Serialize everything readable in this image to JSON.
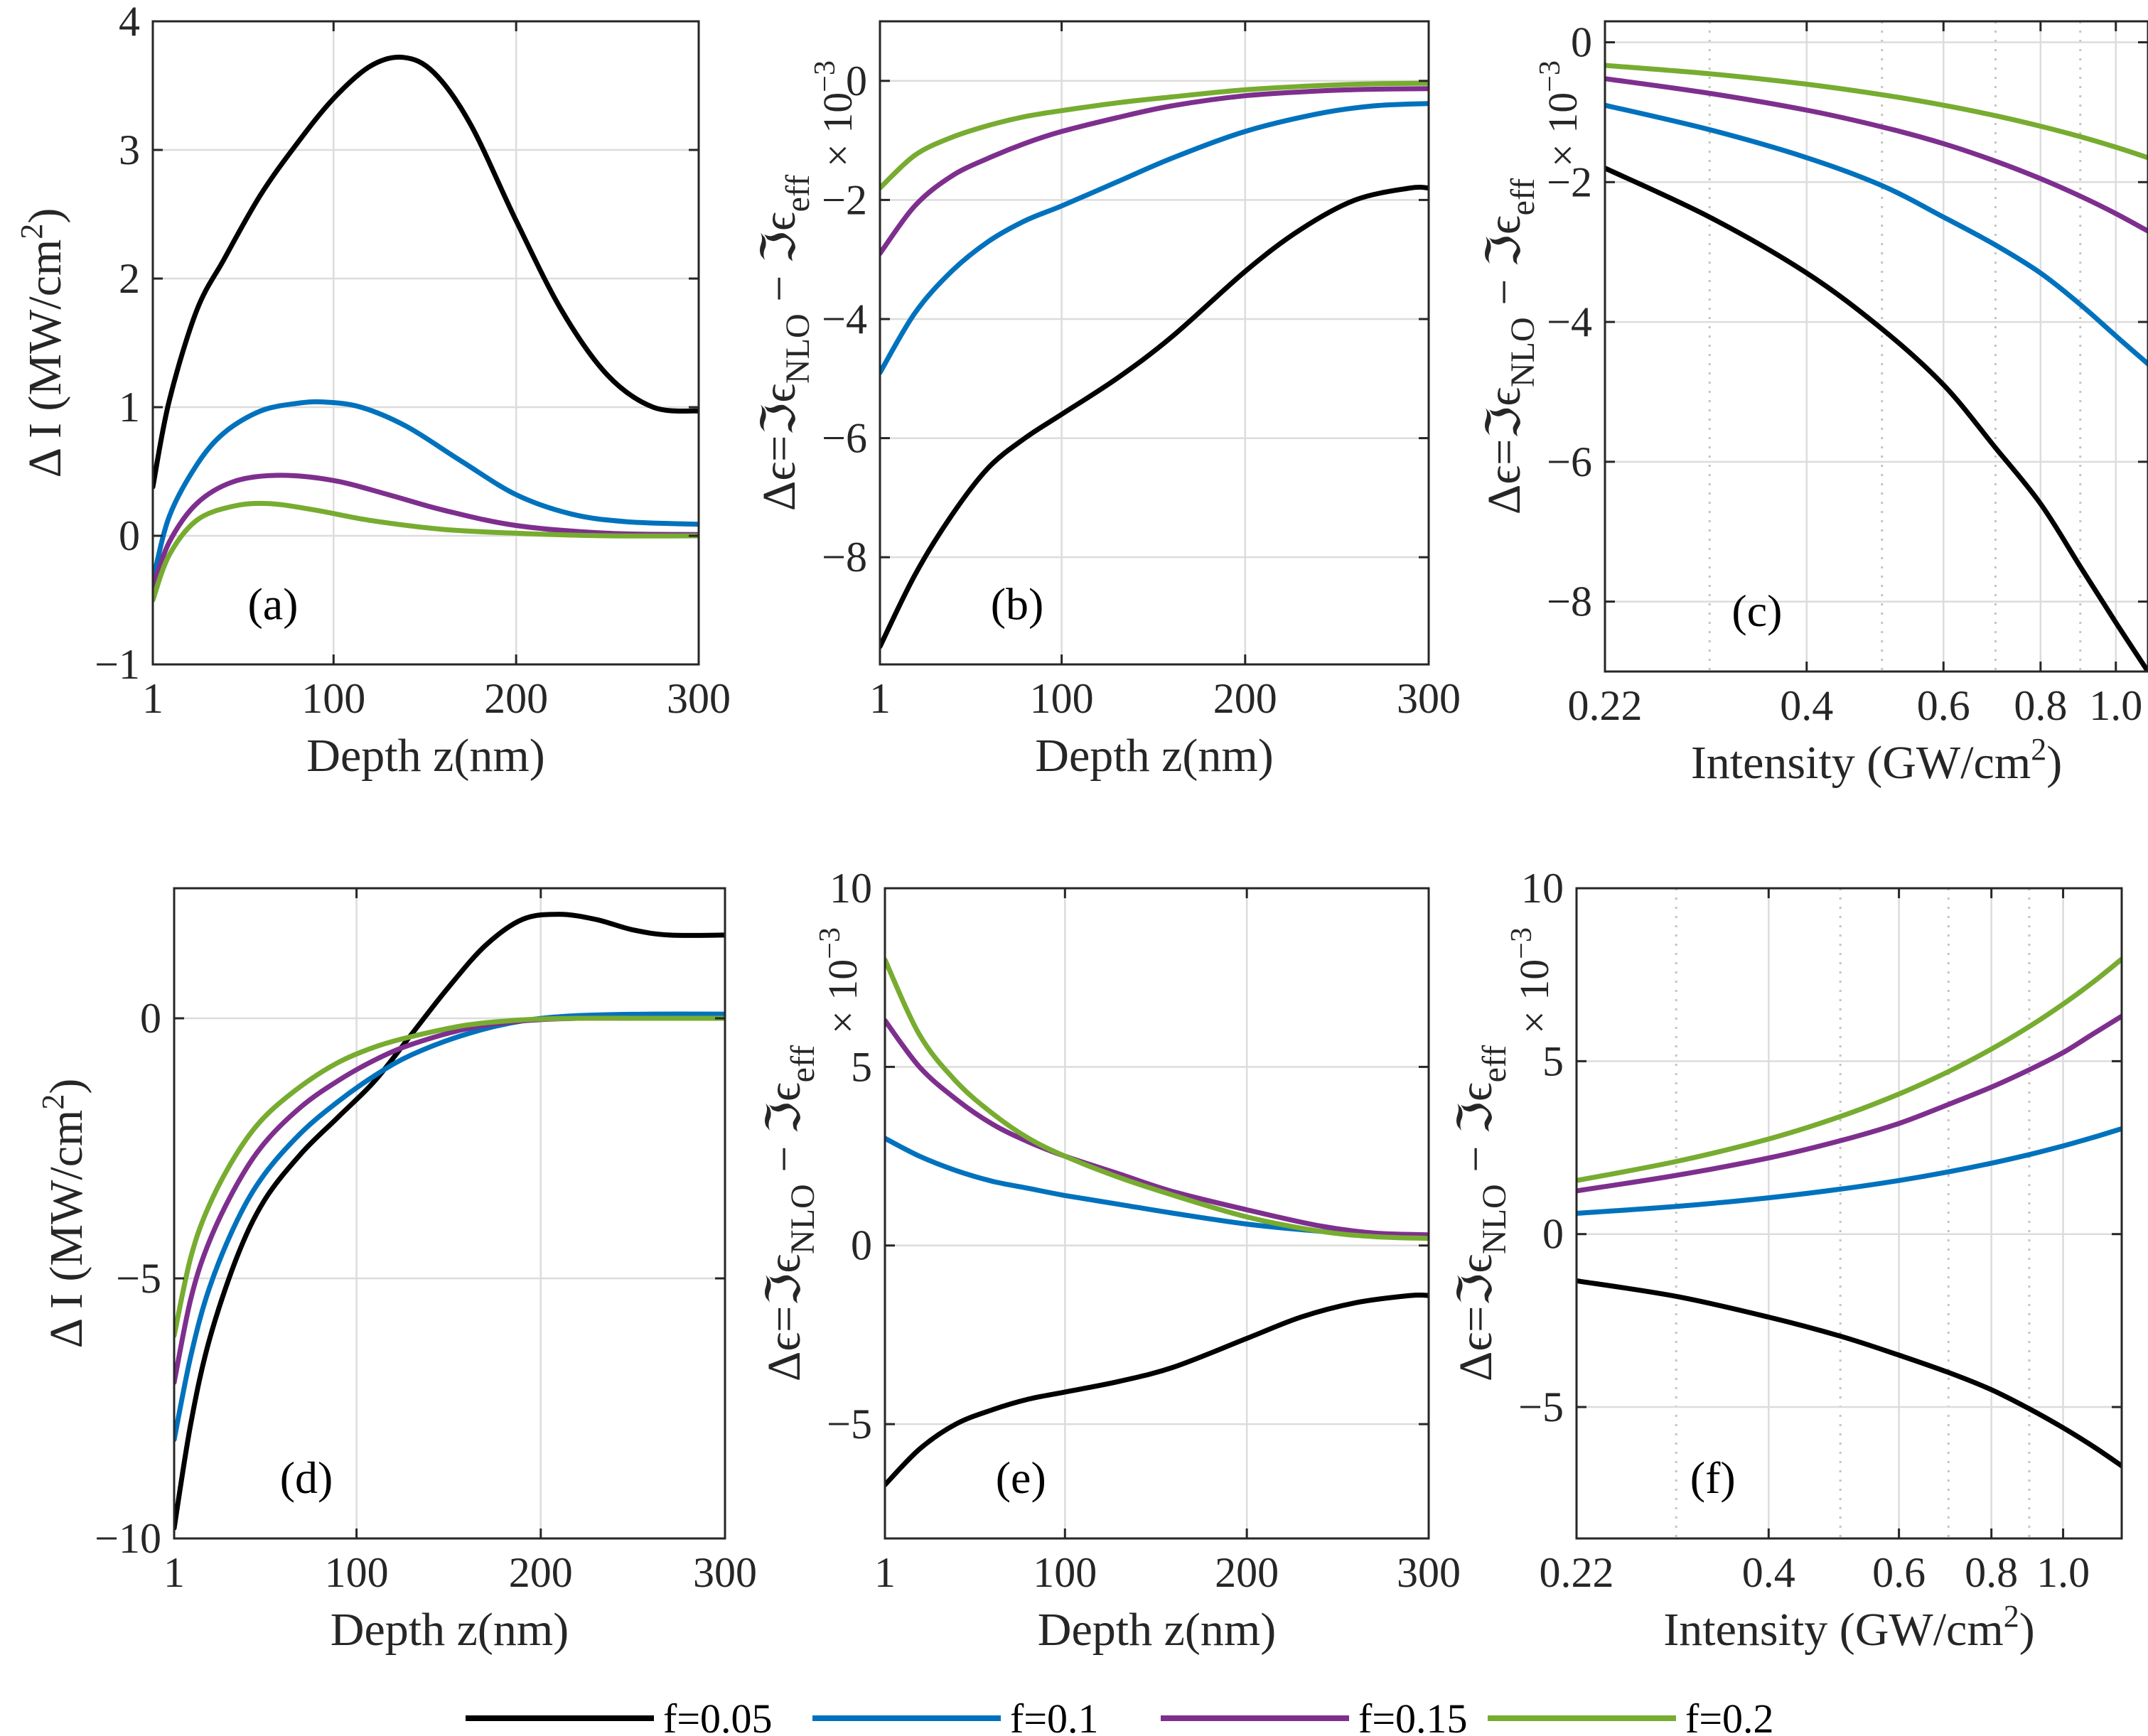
{
  "legend": [
    "f=0.05",
    "f=0.1",
    "f=0.15",
    "f=0.2"
  ],
  "colors": {
    "f=0.05": "#000000",
    "f=0.1": "#0072BD",
    "f=0.15": "#7E2F8E",
    "f=0.2": "#77AC30"
  },
  "chart_data": [
    {
      "id": "a",
      "type": "line",
      "panel_label": "(a)",
      "xlabel": "Depth z(nm)",
      "ylabel": "Δ I (MW/cm²)",
      "ylabel_parts": [
        "Δ I (MW/cm",
        "2",
        ")"
      ],
      "xscale": "linear",
      "xlim": [
        1,
        300
      ],
      "ylim": [
        -1,
        4
      ],
      "xticks": [
        1,
        100,
        200,
        300
      ],
      "xtick_labels": [
        "1",
        "100",
        "200",
        "300"
      ],
      "yticks": [
        -1,
        0,
        1,
        2,
        3,
        4
      ],
      "ytick_labels": [
        "−1",
        "0",
        "1",
        "2",
        "3",
        "4"
      ],
      "grid": "solid",
      "label_position": "bottom-left",
      "series": [
        {
          "name": "f=0.05",
          "x": [
            1,
            10,
            25,
            40,
            60,
            80,
            100,
            120,
            138,
            155,
            175,
            200,
            225,
            250,
            275,
            300
          ],
          "y": [
            0.38,
            1.05,
            1.75,
            2.15,
            2.65,
            3.05,
            3.4,
            3.65,
            3.72,
            3.6,
            3.2,
            2.45,
            1.75,
            1.25,
            1.0,
            0.97
          ]
        },
        {
          "name": "f=0.1",
          "x": [
            1,
            10,
            25,
            40,
            60,
            80,
            95,
            115,
            140,
            170,
            200,
            230,
            260,
            300
          ],
          "y": [
            -0.35,
            0.15,
            0.55,
            0.8,
            0.97,
            1.03,
            1.04,
            1.0,
            0.85,
            0.58,
            0.32,
            0.17,
            0.11,
            0.09
          ]
        },
        {
          "name": "f=0.15",
          "x": [
            1,
            10,
            25,
            45,
            70,
            100,
            130,
            160,
            200,
            250,
            300
          ],
          "y": [
            -0.4,
            -0.05,
            0.25,
            0.42,
            0.47,
            0.43,
            0.32,
            0.2,
            0.08,
            0.02,
            0.01
          ]
        },
        {
          "name": "f=0.2",
          "x": [
            1,
            10,
            25,
            45,
            65,
            90,
            120,
            160,
            200,
            250,
            300
          ],
          "y": [
            -0.5,
            -0.15,
            0.12,
            0.23,
            0.25,
            0.2,
            0.12,
            0.05,
            0.02,
            0.0,
            0.0
          ]
        }
      ]
    },
    {
      "id": "b",
      "type": "line",
      "panel_label": "(b)",
      "xlabel": "Depth z(nm)",
      "ylabel": "Δϵ=ℑϵNLO − ℑϵeff",
      "ylabel_parts": [
        "Δϵ=ℑϵ",
        "NLO",
        " − ℑϵ",
        "eff"
      ],
      "multiplier": "× 10⁻³",
      "multiplier_parts": [
        "× 10",
        "−3"
      ],
      "xscale": "linear",
      "xlim": [
        1,
        300
      ],
      "ylim": [
        -9.8,
        1
      ],
      "xticks": [
        1,
        100,
        200,
        300
      ],
      "xtick_labels": [
        "1",
        "100",
        "200",
        "300"
      ],
      "yticks": [
        0,
        -2,
        -4,
        -6,
        -8
      ],
      "ytick_labels": [
        "0",
        "−2",
        "−4",
        "−6",
        "−8"
      ],
      "grid": "solid",
      "label_position": "bottom-center",
      "series": [
        {
          "name": "f=0.05",
          "x": [
            1,
            20,
            40,
            60,
            80,
            100,
            130,
            160,
            200,
            230,
            260,
            290,
            300
          ],
          "y": [
            -9.5,
            -8.3,
            -7.3,
            -6.5,
            -6.0,
            -5.6,
            -5.0,
            -4.3,
            -3.2,
            -2.5,
            -2.0,
            -1.8,
            -1.8
          ]
        },
        {
          "name": "f=0.1",
          "x": [
            1,
            20,
            40,
            60,
            80,
            100,
            130,
            160,
            200,
            240,
            270,
            300
          ],
          "y": [
            -4.9,
            -3.9,
            -3.2,
            -2.7,
            -2.35,
            -2.1,
            -1.7,
            -1.3,
            -0.85,
            -0.55,
            -0.42,
            -0.38
          ]
        },
        {
          "name": "f=0.15",
          "x": [
            1,
            20,
            40,
            60,
            80,
            100,
            130,
            160,
            200,
            240,
            270,
            300
          ],
          "y": [
            -2.9,
            -2.1,
            -1.6,
            -1.3,
            -1.05,
            -0.85,
            -0.62,
            -0.42,
            -0.25,
            -0.17,
            -0.14,
            -0.13
          ]
        },
        {
          "name": "f=0.2",
          "x": [
            1,
            20,
            40,
            60,
            80,
            100,
            130,
            160,
            200,
            240,
            270,
            300
          ],
          "y": [
            -1.8,
            -1.25,
            -0.95,
            -0.75,
            -0.6,
            -0.5,
            -0.37,
            -0.27,
            -0.15,
            -0.08,
            -0.05,
            -0.04
          ]
        }
      ]
    },
    {
      "id": "c",
      "type": "line",
      "panel_label": "(c)",
      "xlabel": "Intensity (GW/cm²)",
      "xlabel_parts": [
        "Intensity (GW/cm",
        "2",
        ")"
      ],
      "ylabel": "Δϵ=ℑϵNLO − ℑϵeff",
      "ylabel_parts": [
        "Δϵ=ℑϵ",
        "NLO",
        " − ℑϵ",
        "eff"
      ],
      "multiplier": "× 10⁻³",
      "multiplier_parts": [
        "× 10",
        "−3"
      ],
      "xscale": "log",
      "xlim": [
        0.22,
        1.1
      ],
      "ylim": [
        -9,
        0.3
      ],
      "xticks": [
        0.22,
        0.4,
        0.6,
        0.8,
        1.0
      ],
      "xtick_labels": [
        "0.22",
        "0.4",
        "0.6",
        "0.8",
        "1.0"
      ],
      "xgrid_dotted": [
        0.3,
        0.5,
        0.7,
        0.9
      ],
      "yticks": [
        0,
        -2,
        -4,
        -6,
        -8
      ],
      "ytick_labels": [
        "0",
        "−2",
        "−4",
        "−6",
        "−8"
      ],
      "grid": "solid+dotted",
      "label_position": "bottom-center",
      "series": [
        {
          "name": "f=0.05",
          "x": [
            0.22,
            0.3,
            0.4,
            0.5,
            0.6,
            0.7,
            0.8,
            0.9,
            1.0,
            1.1
          ],
          "y": [
            -1.8,
            -2.5,
            -3.3,
            -4.1,
            -4.9,
            -5.8,
            -6.6,
            -7.5,
            -8.3,
            -9.0
          ]
        },
        {
          "name": "f=0.1",
          "x": [
            0.22,
            0.3,
            0.4,
            0.5,
            0.6,
            0.7,
            0.8,
            0.9,
            1.0,
            1.1
          ],
          "y": [
            -0.9,
            -1.25,
            -1.65,
            -2.05,
            -2.5,
            -2.9,
            -3.3,
            -3.75,
            -4.2,
            -4.6
          ]
        },
        {
          "name": "f=0.15",
          "x": [
            0.22,
            0.3,
            0.4,
            0.5,
            0.6,
            0.7,
            0.8,
            0.9,
            1.0,
            1.1
          ],
          "y": [
            -0.52,
            -0.73,
            -0.97,
            -1.21,
            -1.45,
            -1.7,
            -1.95,
            -2.2,
            -2.45,
            -2.7
          ]
        },
        {
          "name": "f=0.2",
          "x": [
            0.22,
            0.3,
            0.4,
            0.5,
            0.6,
            0.7,
            0.8,
            0.9,
            1.0,
            1.1
          ],
          "y": [
            -0.33,
            -0.45,
            -0.6,
            -0.75,
            -0.9,
            -1.05,
            -1.2,
            -1.35,
            -1.5,
            -1.65
          ]
        }
      ]
    },
    {
      "id": "d",
      "type": "line",
      "panel_label": "(d)",
      "xlabel": "Depth z(nm)",
      "ylabel": "Δ I (MW/cm²)",
      "ylabel_parts": [
        "Δ I (MW/cm",
        "2",
        ")"
      ],
      "xscale": "linear",
      "xlim": [
        1,
        300
      ],
      "ylim": [
        -10,
        2.5
      ],
      "xticks": [
        1,
        100,
        200,
        300
      ],
      "xtick_labels": [
        "1",
        "100",
        "200",
        "300"
      ],
      "yticks": [
        0,
        -5,
        -10
      ],
      "ytick_labels": [
        "0",
        "−5",
        "−10"
      ],
      "grid": "solid",
      "label_position": "bottom-left",
      "series": [
        {
          "name": "f=0.05",
          "x": [
            1,
            10,
            20,
            35,
            50,
            70,
            90,
            110,
            130,
            150,
            170,
            190,
            210,
            230,
            250,
            270,
            300
          ],
          "y": [
            -9.8,
            -7.8,
            -6.2,
            -4.6,
            -3.5,
            -2.6,
            -1.9,
            -1.2,
            -0.3,
            0.6,
            1.4,
            1.9,
            2.0,
            1.9,
            1.7,
            1.6,
            1.6
          ]
        },
        {
          "name": "f=0.1",
          "x": [
            1,
            10,
            20,
            35,
            50,
            70,
            90,
            110,
            130,
            160,
            190,
            220,
            260,
            300
          ],
          "y": [
            -8.1,
            -6.5,
            -5.2,
            -3.9,
            -3.0,
            -2.2,
            -1.6,
            -1.1,
            -0.7,
            -0.3,
            -0.05,
            0.05,
            0.08,
            0.08
          ]
        },
        {
          "name": "f=0.15",
          "x": [
            1,
            10,
            20,
            35,
            50,
            70,
            90,
            110,
            130,
            160,
            190,
            220,
            260,
            300
          ],
          "y": [
            -7.0,
            -5.4,
            -4.3,
            -3.2,
            -2.4,
            -1.7,
            -1.2,
            -0.8,
            -0.5,
            -0.2,
            -0.05,
            0.0,
            0.0,
            0.0
          ]
        },
        {
          "name": "f=0.2",
          "x": [
            1,
            10,
            20,
            35,
            50,
            70,
            90,
            110,
            130,
            160,
            190,
            220,
            260,
            300
          ],
          "y": [
            -6.1,
            -4.6,
            -3.6,
            -2.6,
            -1.9,
            -1.3,
            -0.85,
            -0.55,
            -0.35,
            -0.13,
            -0.03,
            0.0,
            0.0,
            0.0
          ]
        }
      ]
    },
    {
      "id": "e",
      "type": "line",
      "panel_label": "(e)",
      "xlabel": "Depth z(nm)",
      "ylabel": "Δϵ=ℑϵNLO − ℑϵeff",
      "ylabel_parts": [
        "Δϵ=ℑϵ",
        "NLO",
        " − ℑϵ",
        "eff"
      ],
      "multiplier": "× 10⁻³",
      "multiplier_parts": [
        "× 10",
        "−3"
      ],
      "xscale": "linear",
      "xlim": [
        1,
        300
      ],
      "ylim": [
        -8.2,
        10
      ],
      "xticks": [
        1,
        100,
        200,
        300
      ],
      "xtick_labels": [
        "1",
        "100",
        "200",
        "300"
      ],
      "yticks": [
        10,
        5,
        0,
        -5
      ],
      "ytick_labels": [
        "10",
        "5",
        "0",
        "−5"
      ],
      "grid": "solid",
      "label_position": "bottom-center",
      "series": [
        {
          "name": "f=0.05",
          "x": [
            1,
            20,
            40,
            60,
            80,
            100,
            130,
            160,
            200,
            230,
            260,
            290,
            300
          ],
          "y": [
            -6.7,
            -5.7,
            -5.0,
            -4.6,
            -4.3,
            -4.1,
            -3.8,
            -3.4,
            -2.6,
            -2.0,
            -1.6,
            -1.4,
            -1.4
          ]
        },
        {
          "name": "f=0.1",
          "x": [
            1,
            20,
            40,
            60,
            80,
            100,
            130,
            160,
            200,
            240,
            270,
            300
          ],
          "y": [
            3.0,
            2.5,
            2.1,
            1.8,
            1.6,
            1.4,
            1.15,
            0.9,
            0.6,
            0.4,
            0.3,
            0.25
          ]
        },
        {
          "name": "f=0.15",
          "x": [
            1,
            20,
            40,
            60,
            80,
            100,
            130,
            160,
            200,
            240,
            270,
            300
          ],
          "y": [
            6.3,
            5.0,
            4.1,
            3.4,
            2.9,
            2.5,
            2.0,
            1.5,
            1.0,
            0.55,
            0.35,
            0.3
          ]
        },
        {
          "name": "f=0.2",
          "x": [
            1,
            20,
            40,
            60,
            80,
            100,
            130,
            160,
            200,
            240,
            270,
            300
          ],
          "y": [
            8.0,
            5.9,
            4.6,
            3.7,
            3.0,
            2.5,
            1.9,
            1.4,
            0.8,
            0.4,
            0.25,
            0.2
          ]
        }
      ]
    },
    {
      "id": "f",
      "type": "line",
      "panel_label": "(f)",
      "xlabel": "Intensity (GW/cm²)",
      "xlabel_parts": [
        "Intensity (GW/cm",
        "2",
        ")"
      ],
      "ylabel": "Δϵ=ℑϵNLO − ℑϵeff",
      "ylabel_parts": [
        "Δϵ=ℑϵ",
        "NLO",
        " − ℑϵ",
        "eff"
      ],
      "multiplier": "× 10⁻³",
      "multiplier_parts": [
        "× 10",
        "−3"
      ],
      "xscale": "log",
      "xlim": [
        0.22,
        1.2
      ],
      "ylim": [
        -8.8,
        10
      ],
      "xticks": [
        0.22,
        0.4,
        0.6,
        0.8,
        1.0
      ],
      "xtick_labels": [
        "0.22",
        "0.4",
        "0.6",
        "0.8",
        "1.0"
      ],
      "xgrid_dotted": [
        0.3,
        0.5,
        0.7,
        0.9
      ],
      "yticks": [
        10,
        5,
        0,
        -5
      ],
      "ytick_labels": [
        "10",
        "5",
        "0",
        "−5"
      ],
      "grid": "solid+dotted",
      "label_position": "bottom-center",
      "series": [
        {
          "name": "f=0.05",
          "x": [
            0.22,
            0.3,
            0.4,
            0.5,
            0.6,
            0.7,
            0.8,
            0.9,
            1.0,
            1.1,
            1.2
          ],
          "y": [
            -1.35,
            -1.8,
            -2.4,
            -2.95,
            -3.5,
            -4.0,
            -4.5,
            -5.05,
            -5.6,
            -6.15,
            -6.7
          ]
        },
        {
          "name": "f=0.1",
          "x": [
            0.22,
            0.3,
            0.4,
            0.5,
            0.6,
            0.7,
            0.8,
            0.9,
            1.0,
            1.1,
            1.2
          ],
          "y": [
            0.6,
            0.8,
            1.05,
            1.3,
            1.55,
            1.8,
            2.05,
            2.3,
            2.55,
            2.8,
            3.05
          ]
        },
        {
          "name": "f=0.15",
          "x": [
            0.22,
            0.3,
            0.4,
            0.5,
            0.6,
            0.7,
            0.8,
            0.9,
            1.0,
            1.1,
            1.2
          ],
          "y": [
            1.25,
            1.7,
            2.2,
            2.7,
            3.2,
            3.75,
            4.25,
            4.75,
            5.25,
            5.8,
            6.3
          ]
        },
        {
          "name": "f=0.2",
          "x": [
            0.22,
            0.3,
            0.4,
            0.5,
            0.6,
            0.7,
            0.8,
            0.9,
            1.0,
            1.1,
            1.2
          ],
          "y": [
            1.55,
            2.1,
            2.75,
            3.4,
            4.05,
            4.7,
            5.35,
            6.0,
            6.65,
            7.3,
            7.95
          ]
        }
      ]
    }
  ]
}
